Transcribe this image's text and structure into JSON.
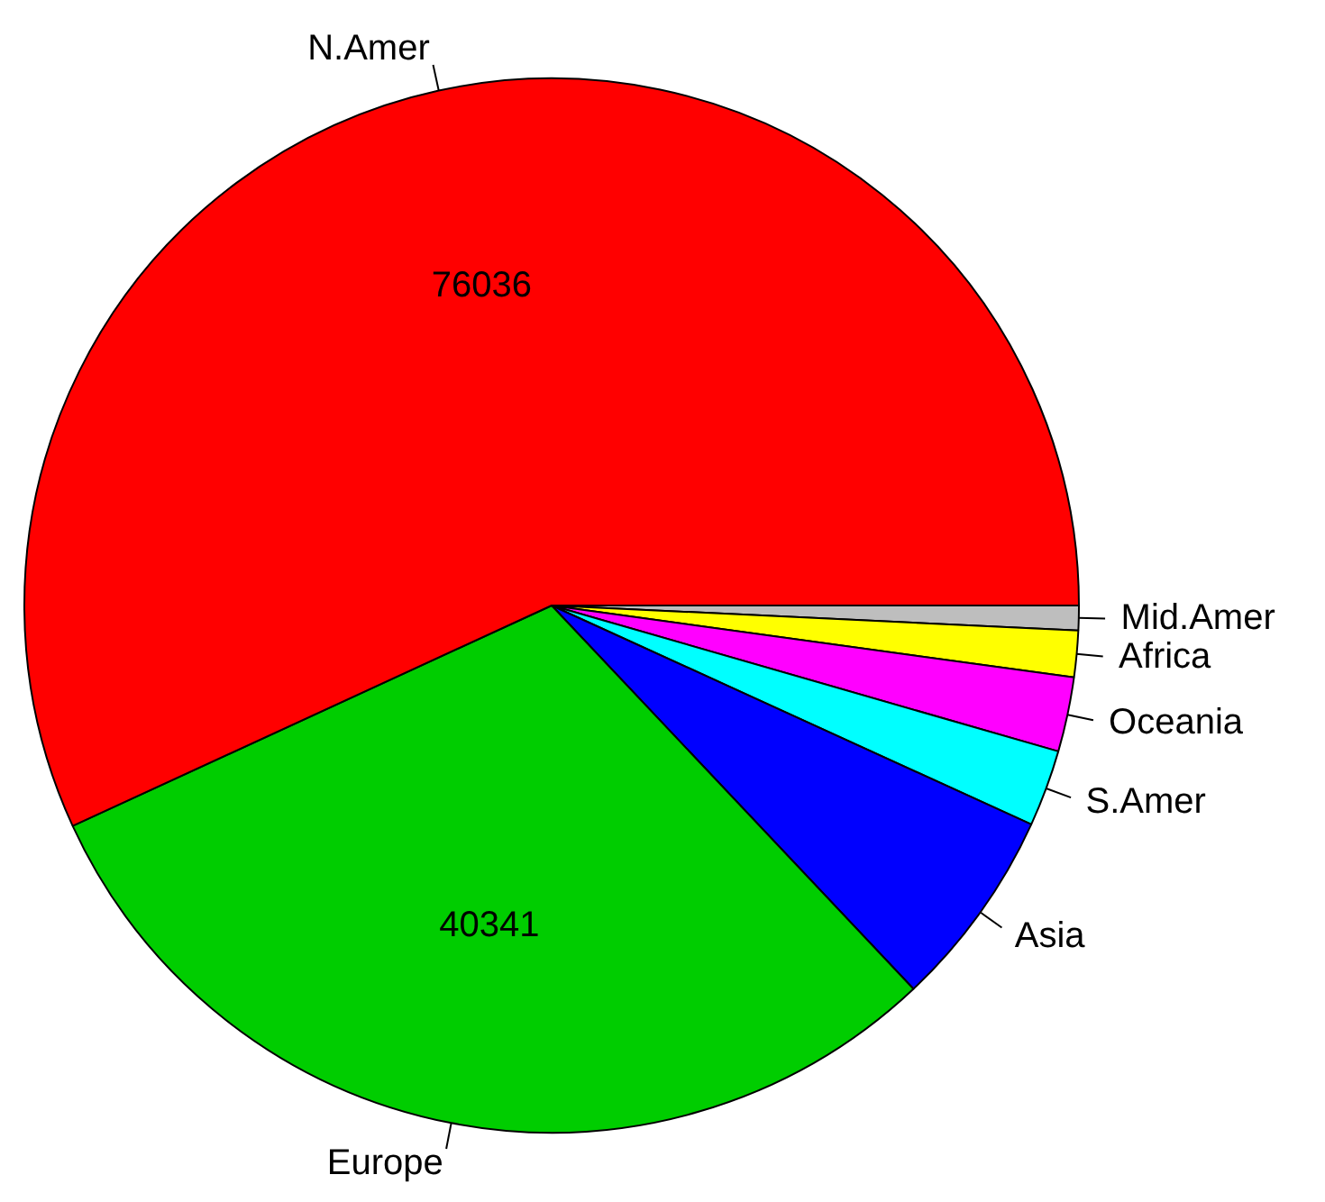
{
  "chart_data": {
    "type": "pie",
    "categories": [
      "N.Amer",
      "Europe",
      "Asia",
      "S.Amer",
      "Oceania",
      "Africa",
      "Mid.Amer"
    ],
    "values": [
      76036,
      40341,
      8220,
      3145,
      3054,
      1905,
      1008
    ],
    "colors": [
      "#ff0000",
      "#00cd00",
      "#0000ff",
      "#00ffff",
      "#ff00ff",
      "#ffff00",
      "#bebebe"
    ],
    "value_labels": [
      "76036",
      "40341",
      null,
      null,
      null,
      null,
      null
    ],
    "legend": false
  }
}
